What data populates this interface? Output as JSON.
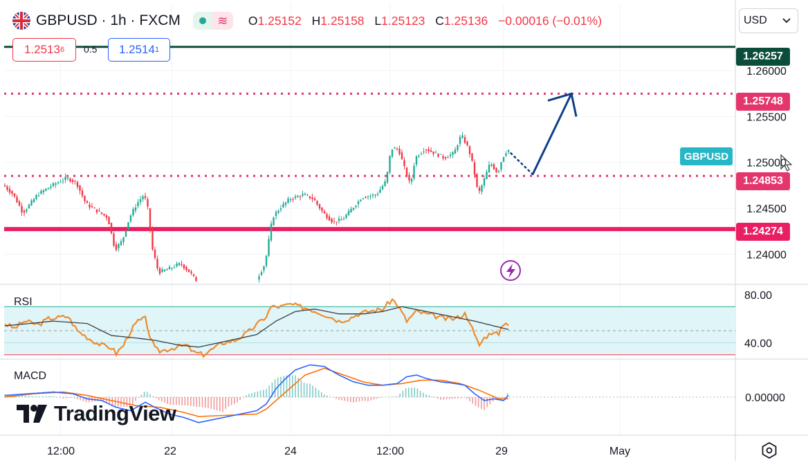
{
  "header": {
    "symbol": "GBPUSD",
    "timeframe": "1h",
    "exchange": "FXCM",
    "title": "GBPUSD · 1h · FXCM",
    "ohlc": {
      "o_label": "O",
      "o": "1.25152",
      "h_label": "H",
      "h": "1.25158",
      "l_label": "L",
      "l": "1.25123",
      "c_label": "C",
      "c": "1.25136",
      "change": "−0.00016 (−0.01%)"
    },
    "wave_icon": "≋"
  },
  "trade": {
    "sell_price": "1.2513",
    "sell_sup": "6",
    "spread": "0.5",
    "buy_price": "1.2514",
    "buy_sup": "1"
  },
  "currency_selector": {
    "value": "USD",
    "icon": "chevron-down-icon"
  },
  "colors": {
    "up": "#22ab94",
    "down": "#f23645",
    "level_dotted": "#e4366c",
    "level_solid": "#e91e63",
    "resistance": "#0b4d3a",
    "arrow": "#0d3e8a",
    "rsi_line": "#ef8b2c",
    "rsi_ma": "#363a45",
    "macd": "#2962ff",
    "signal": "#ff6d00",
    "cyan_tag": "#26b7c6"
  },
  "price_labels": [
    {
      "text": "1.26257",
      "kind": "resistance"
    },
    {
      "text": "1.25748",
      "kind": "level"
    },
    {
      "text": "1.24853",
      "kind": "level"
    },
    {
      "text": "1.24274",
      "kind": "support"
    }
  ],
  "symbol_tag": "GBPUSD",
  "indicators": {
    "rsi_label": "RSI",
    "macd_label": "MACD"
  },
  "logo_text": "TradingView",
  "chart_data": [
    {
      "type": "candlestick",
      "title": "GBPUSD · 1h · FXCM",
      "x_ticks": [
        "12:00",
        "22",
        "24",
        "12:00",
        "29",
        "May"
      ],
      "y_ticks": [
        "1.26000",
        "1.25500",
        "1.25000",
        "1.24500",
        "1.24000"
      ],
      "ylim": [
        1.2368,
        1.2673
      ],
      "levels": [
        {
          "value": 1.26257,
          "style": "solid",
          "color": "#0b4d3a"
        },
        {
          "value": 1.25748,
          "style": "dotted",
          "color": "#e4366c"
        },
        {
          "value": 1.24853,
          "style": "dotted",
          "color": "#e4366c"
        },
        {
          "value": 1.24274,
          "style": "solid",
          "color": "#e91e63"
        }
      ],
      "anchors": [
        {
          "t": 0,
          "p": 1.2475
        },
        {
          "t": 4,
          "p": 1.2465
        },
        {
          "t": 8,
          "p": 1.2445
        },
        {
          "t": 14,
          "p": 1.2465
        },
        {
          "t": 20,
          "p": 1.2475
        },
        {
          "t": 26,
          "p": 1.2483
        },
        {
          "t": 30,
          "p": 1.2478
        },
        {
          "t": 34,
          "p": 1.2455
        },
        {
          "t": 38,
          "p": 1.2448
        },
        {
          "t": 43,
          "p": 1.244
        },
        {
          "t": 46,
          "p": 1.2405
        },
        {
          "t": 49,
          "p": 1.2415
        },
        {
          "t": 52,
          "p": 1.244
        },
        {
          "t": 55,
          "p": 1.2455
        },
        {
          "t": 58,
          "p": 1.2465
        },
        {
          "t": 60,
          "p": 1.2445
        },
        {
          "t": 61,
          "p": 1.241
        },
        {
          "t": 64,
          "p": 1.238
        },
        {
          "t": 69,
          "p": 1.2385
        },
        {
          "t": 73,
          "p": 1.239
        },
        {
          "t": 77,
          "p": 1.238
        },
        {
          "t": 80,
          "p": 1.237
        },
        {
          "t": 104,
          "p": 1.237
        },
        {
          "t": 108,
          "p": 1.239
        },
        {
          "t": 111,
          "p": 1.244
        },
        {
          "t": 114,
          "p": 1.245
        },
        {
          "t": 118,
          "p": 1.246
        },
        {
          "t": 124,
          "p": 1.2465
        },
        {
          "t": 128,
          "p": 1.246
        },
        {
          "t": 132,
          "p": 1.2445
        },
        {
          "t": 136,
          "p": 1.2435
        },
        {
          "t": 140,
          "p": 1.2438
        },
        {
          "t": 144,
          "p": 1.245
        },
        {
          "t": 148,
          "p": 1.2462
        },
        {
          "t": 154,
          "p": 1.2465
        },
        {
          "t": 158,
          "p": 1.248
        },
        {
          "t": 160,
          "p": 1.2515
        },
        {
          "t": 163,
          "p": 1.2515
        },
        {
          "t": 166,
          "p": 1.249
        },
        {
          "t": 168,
          "p": 1.2475
        },
        {
          "t": 170,
          "p": 1.2505
        },
        {
          "t": 174,
          "p": 1.2515
        },
        {
          "t": 178,
          "p": 1.251
        },
        {
          "t": 182,
          "p": 1.2505
        },
        {
          "t": 186,
          "p": 1.251
        },
        {
          "t": 189,
          "p": 1.253
        },
        {
          "t": 192,
          "p": 1.2515
        },
        {
          "t": 194,
          "p": 1.2495
        },
        {
          "t": 196,
          "p": 1.2465
        },
        {
          "t": 198,
          "p": 1.2478
        },
        {
          "t": 201,
          "p": 1.25
        },
        {
          "t": 204,
          "p": 1.2488
        },
        {
          "t": 206,
          "p": 1.2505
        },
        {
          "t": 208,
          "p": 1.25136
        }
      ],
      "projection": [
        {
          "t": 209,
          "p": 1.251,
          "style": "dotted"
        },
        {
          "t": 218,
          "p": 1.2487,
          "style": "solid"
        },
        {
          "t": 234,
          "p": 1.25748,
          "style": "solid"
        }
      ]
    },
    {
      "type": "line",
      "name": "RSI",
      "y_ticks": [
        "80.00",
        "40.00"
      ],
      "ylim": [
        27,
        88
      ],
      "band": [
        30,
        70
      ],
      "rsi": [
        [
          0,
          56
        ],
        [
          4,
          52
        ],
        [
          8,
          58
        ],
        [
          14,
          55
        ],
        [
          18,
          60
        ],
        [
          26,
          62
        ],
        [
          30,
          50
        ],
        [
          36,
          42
        ],
        [
          40,
          38
        ],
        [
          44,
          36
        ],
        [
          46,
          31
        ],
        [
          49,
          38
        ],
        [
          52,
          50
        ],
        [
          55,
          58
        ],
        [
          58,
          60
        ],
        [
          60,
          45
        ],
        [
          62,
          35
        ],
        [
          64,
          33
        ],
        [
          70,
          36
        ],
        [
          75,
          38
        ],
        [
          78,
          32
        ],
        [
          82,
          30
        ],
        [
          86,
          35
        ],
        [
          90,
          40
        ],
        [
          95,
          42
        ],
        [
          100,
          48
        ],
        [
          104,
          55
        ],
        [
          108,
          62
        ],
        [
          110,
          70
        ],
        [
          114,
          70
        ],
        [
          118,
          72
        ],
        [
          122,
          70
        ],
        [
          126,
          68
        ],
        [
          130,
          65
        ],
        [
          134,
          62
        ],
        [
          138,
          58
        ],
        [
          142,
          60
        ],
        [
          146,
          64
        ],
        [
          150,
          66
        ],
        [
          156,
          68
        ],
        [
          160,
          76
        ],
        [
          162,
          72
        ],
        [
          166,
          58
        ],
        [
          170,
          66
        ],
        [
          174,
          64
        ],
        [
          178,
          62
        ],
        [
          182,
          60
        ],
        [
          186,
          60
        ],
        [
          190,
          64
        ],
        [
          192,
          58
        ],
        [
          194,
          46
        ],
        [
          196,
          38
        ],
        [
          198,
          44
        ],
        [
          202,
          50
        ],
        [
          204,
          46
        ],
        [
          206,
          56
        ],
        [
          208,
          56
        ]
      ],
      "rsi_ma": [
        [
          0,
          54
        ],
        [
          20,
          58
        ],
        [
          34,
          56
        ],
        [
          44,
          46
        ],
        [
          54,
          44
        ],
        [
          62,
          42
        ],
        [
          72,
          38
        ],
        [
          82,
          36
        ],
        [
          92,
          38
        ],
        [
          102,
          44
        ],
        [
          112,
          58
        ],
        [
          120,
          66
        ],
        [
          128,
          68
        ],
        [
          138,
          64
        ],
        [
          148,
          64
        ],
        [
          156,
          66
        ],
        [
          164,
          70
        ],
        [
          174,
          66
        ],
        [
          184,
          62
        ],
        [
          194,
          58
        ],
        [
          202,
          54
        ],
        [
          208,
          51
        ]
      ]
    },
    {
      "type": "line",
      "name": "MACD",
      "y_ticks": [
        "0.00000"
      ],
      "ylim": [
        -0.0022,
        0.0022
      ],
      "macd": [
        [
          0,
          0.0001
        ],
        [
          10,
          0.0002
        ],
        [
          20,
          0.0003
        ],
        [
          28,
          0.0002
        ],
        [
          34,
          -0.0001
        ],
        [
          40,
          -0.0002
        ],
        [
          46,
          -0.0006
        ],
        [
          52,
          -0.0008
        ],
        [
          58,
          -0.0003
        ],
        [
          62,
          -0.0006
        ],
        [
          68,
          -0.001
        ],
        [
          74,
          -0.0012
        ],
        [
          80,
          -0.0015
        ],
        [
          86,
          -0.0018
        ],
        [
          90,
          -0.002
        ],
        [
          96,
          -0.0016
        ],
        [
          102,
          -0.001
        ],
        [
          108,
          -0.0004
        ],
        [
          112,
          0.0005
        ],
        [
          116,
          0.0011
        ],
        [
          120,
          0.0016
        ],
        [
          126,
          0.0019
        ],
        [
          132,
          0.0018
        ],
        [
          138,
          0.0013
        ],
        [
          144,
          0.0009
        ],
        [
          150,
          0.0007
        ],
        [
          156,
          0.0007
        ],
        [
          162,
          0.0008
        ],
        [
          166,
          0.0012
        ],
        [
          170,
          0.0013
        ],
        [
          174,
          0.0011
        ],
        [
          180,
          0.0009
        ],
        [
          186,
          0.0008
        ],
        [
          190,
          0.0007
        ],
        [
          194,
          0.0002
        ],
        [
          198,
          -0.0002
        ],
        [
          202,
          -0.0001
        ],
        [
          206,
          -0.0002
        ],
        [
          208,
          0.0001
        ]
      ],
      "signal": [
        [
          0,
          0.0
        ],
        [
          12,
          0.0002
        ],
        [
          24,
          0.0003
        ],
        [
          34,
          0.0001
        ],
        [
          44,
          -0.0002
        ],
        [
          54,
          -0.0005
        ],
        [
          64,
          -0.0006
        ],
        [
          74,
          -0.0009
        ],
        [
          84,
          -0.0013
        ],
        [
          92,
          -0.0015
        ],
        [
          100,
          -0.0013
        ],
        [
          108,
          -0.0007
        ],
        [
          116,
          0.0003
        ],
        [
          124,
          0.0013
        ],
        [
          132,
          0.0017
        ],
        [
          140,
          0.0013
        ],
        [
          148,
          0.0009
        ],
        [
          156,
          0.0007
        ],
        [
          164,
          0.0008
        ],
        [
          172,
          0.001
        ],
        [
          180,
          0.001
        ],
        [
          188,
          0.0008
        ],
        [
          196,
          0.0004
        ],
        [
          204,
          -0.0001
        ],
        [
          208,
          -0.0001
        ]
      ]
    }
  ]
}
